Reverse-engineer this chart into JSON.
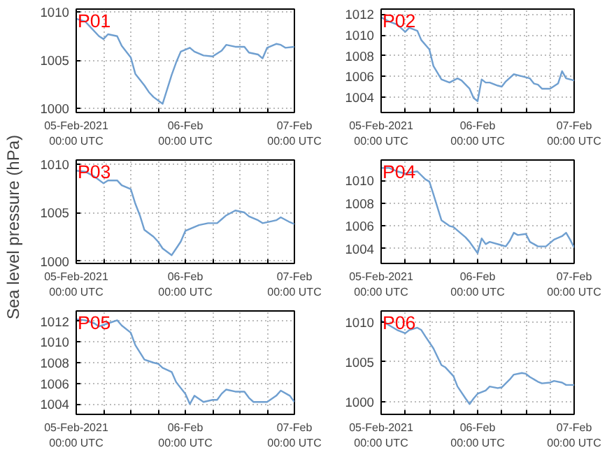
{
  "chart_data": [
    {
      "type": "line",
      "title": "P01",
      "x": [
        "2021-02-05T00:00",
        "2021-02-05T02:00",
        "2021-02-05T03:00",
        "2021-02-05T05:00",
        "2021-02-05T06:00",
        "2021-02-05T07:00",
        "2021-02-05T09:00",
        "2021-02-05T10:00",
        "2021-02-05T12:00",
        "2021-02-05T13:00",
        "2021-02-05T15:00",
        "2021-02-05T16:00",
        "2021-02-05T17:00",
        "2021-02-05T19:00",
        "2021-02-05T21:00",
        "2021-02-05T22:00",
        "2021-02-05T23:00",
        "2021-02-06T01:00",
        "2021-02-06T02:00",
        "2021-02-06T04:00",
        "2021-02-06T06:00",
        "2021-02-06T08:00",
        "2021-02-06T09:00",
        "2021-02-06T11:00",
        "2021-02-06T13:00",
        "2021-02-06T14:00",
        "2021-02-06T16:00",
        "2021-02-06T17:00",
        "2021-02-06T18:00",
        "2021-02-06T20:00",
        "2021-02-06T21:00",
        "2021-02-06T22:00",
        "2021-02-07T00:00"
      ],
      "series": [
        {
          "color": "#6f9fd0",
          "values": [
            1009.3,
            1009.0,
            1008.5,
            1007.5,
            1007.2,
            1007.7,
            1007.5,
            1006.5,
            1005.3,
            1003.6,
            1002.4,
            1001.7,
            1001.2,
            1000.5,
            1003.5,
            1004.8,
            1005.9,
            1006.3,
            1005.9,
            1005.5,
            1005.4,
            1006.0,
            1006.6,
            1006.4,
            1006.4,
            1005.8,
            1005.6,
            1005.2,
            1006.3,
            1006.7,
            1006.6,
            1006.3,
            1006.4
          ]
        }
      ],
      "xlim": [
        "2021-02-05T00:00",
        "2021-02-07T00:00"
      ],
      "xticks": [
        {
          "value": "2021-02-05T00:00",
          "label": "05-Feb-2021\n00:00 UTC"
        },
        {
          "value": "2021-02-05T06:00",
          "label": null
        },
        {
          "value": "2021-02-05T12:00",
          "label": null
        },
        {
          "value": "2021-02-05T18:00",
          "label": null
        },
        {
          "value": "2021-02-06T00:00",
          "label": "06-Feb\n00:00 UTC"
        },
        {
          "value": "2021-02-06T06:00",
          "label": null
        },
        {
          "value": "2021-02-06T12:00",
          "label": null
        },
        {
          "value": "2021-02-06T18:00",
          "label": null
        },
        {
          "value": "2021-02-07T00:00",
          "label": "07-Feb\n00:00 UTC"
        }
      ],
      "ylim": [
        999.6,
        1010.3
      ],
      "yticks": [
        1000,
        1005,
        1010
      ],
      "grid": true
    },
    {
      "type": "line",
      "title": "P02",
      "x": [
        "2021-02-05T00:00",
        "2021-02-05T02:00",
        "2021-02-05T04:00",
        "2021-02-05T06:00",
        "2021-02-05T07:00",
        "2021-02-05T09:00",
        "2021-02-05T10:00",
        "2021-02-05T12:00",
        "2021-02-05T13:00",
        "2021-02-05T15:00",
        "2021-02-05T17:00",
        "2021-02-05T19:00",
        "2021-02-05T20:00",
        "2021-02-05T22:00",
        "2021-02-05T23:00",
        "2021-02-06T00:00",
        "2021-02-06T01:00",
        "2021-02-06T02:00",
        "2021-02-06T03:00",
        "2021-02-06T05:00",
        "2021-02-06T06:00",
        "2021-02-06T07:00",
        "2021-02-06T09:00",
        "2021-02-06T11:00",
        "2021-02-06T13:00",
        "2021-02-06T14:00",
        "2021-02-06T15:00",
        "2021-02-06T16:00",
        "2021-02-06T18:00",
        "2021-02-06T20:00",
        "2021-02-06T21:00",
        "2021-02-06T22:00",
        "2021-02-07T00:00"
      ],
      "series": [
        {
          "color": "#6f9fd0",
          "values": [
            1011.7,
            1011.3,
            1011.0,
            1010.3,
            1010.7,
            1010.4,
            1009.5,
            1008.6,
            1007.0,
            1005.7,
            1005.4,
            1005.8,
            1005.6,
            1004.8,
            1003.9,
            1003.6,
            1005.7,
            1005.4,
            1005.4,
            1005.1,
            1005.0,
            1005.5,
            1006.2,
            1006.0,
            1005.8,
            1005.3,
            1005.2,
            1004.8,
            1004.8,
            1005.3,
            1006.5,
            1005.8,
            1005.6
          ]
        }
      ],
      "xlim": [
        "2021-02-05T00:00",
        "2021-02-07T00:00"
      ],
      "xticks": [
        {
          "value": "2021-02-05T00:00",
          "label": "05-Feb-2021\n00:00 UTC"
        },
        {
          "value": "2021-02-05T06:00",
          "label": null
        },
        {
          "value": "2021-02-05T12:00",
          "label": null
        },
        {
          "value": "2021-02-05T18:00",
          "label": null
        },
        {
          "value": "2021-02-06T00:00",
          "label": "06-Feb\n00:00 UTC"
        },
        {
          "value": "2021-02-06T06:00",
          "label": null
        },
        {
          "value": "2021-02-06T12:00",
          "label": null
        },
        {
          "value": "2021-02-06T18:00",
          "label": null
        },
        {
          "value": "2021-02-07T00:00",
          "label": "07-Feb\n00:00 UTC"
        }
      ],
      "ylim": [
        1002.5,
        1012.5
      ],
      "yticks": [
        1004,
        1006,
        1008,
        1010,
        1012
      ],
      "grid": true
    },
    {
      "type": "line",
      "title": "P03",
      "ylabel": "Sea level pressure (hPa)",
      "x": [
        "2021-02-05T00:00",
        "2021-02-05T02:00",
        "2021-02-05T04:00",
        "2021-02-05T06:00",
        "2021-02-05T07:00",
        "2021-02-05T09:00",
        "2021-02-05T10:00",
        "2021-02-05T12:00",
        "2021-02-05T13:00",
        "2021-02-05T14:00",
        "2021-02-05T15:00",
        "2021-02-05T17:00",
        "2021-02-05T18:00",
        "2021-02-05T19:00",
        "2021-02-05T21:00",
        "2021-02-05T22:00",
        "2021-02-05T23:00",
        "2021-02-06T00:00",
        "2021-02-06T01:00",
        "2021-02-06T03:00",
        "2021-02-06T05:00",
        "2021-02-06T07:00",
        "2021-02-06T08:00",
        "2021-02-06T09:00",
        "2021-02-06T11:00",
        "2021-02-06T13:00",
        "2021-02-06T14:00",
        "2021-02-06T16:00",
        "2021-02-06T17:00",
        "2021-02-06T19:00",
        "2021-02-06T20:00",
        "2021-02-06T21:00",
        "2021-02-06T23:00",
        "2021-02-07T00:00"
      ],
      "series": [
        {
          "color": "#6f9fd0",
          "values": [
            1009.3,
            1009.2,
            1008.7,
            1008.0,
            1008.3,
            1008.3,
            1007.8,
            1007.4,
            1005.9,
            1004.7,
            1003.2,
            1002.5,
            1002.0,
            1001.3,
            1000.6,
            1001.3,
            1002.0,
            1003.1,
            1003.3,
            1003.7,
            1003.9,
            1003.9,
            1004.3,
            1004.7,
            1005.2,
            1005.0,
            1004.6,
            1004.2,
            1003.9,
            1004.1,
            1004.2,
            1004.5,
            1004.0,
            1003.8
          ]
        }
      ],
      "xlim": [
        "2021-02-05T00:00",
        "2021-02-07T00:00"
      ],
      "xticks": [
        {
          "value": "2021-02-05T00:00",
          "label": "05-Feb-2021\n00:00 UTC"
        },
        {
          "value": "2021-02-05T06:00",
          "label": null
        },
        {
          "value": "2021-02-05T12:00",
          "label": null
        },
        {
          "value": "2021-02-05T18:00",
          "label": null
        },
        {
          "value": "2021-02-06T00:00",
          "label": "06-Feb\n00:00 UTC"
        },
        {
          "value": "2021-02-06T06:00",
          "label": null
        },
        {
          "value": "2021-02-06T12:00",
          "label": null
        },
        {
          "value": "2021-02-06T18:00",
          "label": null
        },
        {
          "value": "2021-02-07T00:00",
          "label": "07-Feb\n00:00 UTC"
        }
      ],
      "ylim": [
        999.75,
        1010.4
      ],
      "yticks": [
        1000,
        1005,
        1010
      ],
      "grid": true
    },
    {
      "type": "line",
      "title": "P04",
      "x": [
        "2021-02-05T00:00",
        "2021-02-05T02:00",
        "2021-02-05T04:00",
        "2021-02-05T06:00",
        "2021-02-05T07:00",
        "2021-02-05T09:00",
        "2021-02-05T11:00",
        "2021-02-05T12:00",
        "2021-02-05T13:00",
        "2021-02-05T15:00",
        "2021-02-05T17:00",
        "2021-02-05T18:00",
        "2021-02-05T19:00",
        "2021-02-05T21:00",
        "2021-02-05T22:00",
        "2021-02-05T23:00",
        "2021-02-06T00:00",
        "2021-02-06T01:00",
        "2021-02-06T02:00",
        "2021-02-06T03:00",
        "2021-02-06T06:00",
        "2021-02-06T07:00",
        "2021-02-06T08:00",
        "2021-02-06T09:00",
        "2021-02-06T10:00",
        "2021-02-06T12:00",
        "2021-02-06T13:00",
        "2021-02-06T15:00",
        "2021-02-06T17:00",
        "2021-02-06T19:00",
        "2021-02-06T21:00",
        "2021-02-06T22:00",
        "2021-02-06T23:00",
        "2021-02-07T00:00"
      ],
      "series": [
        {
          "color": "#6f9fd0",
          "values": [
            1011.1,
            1011.1,
            1010.8,
            1010.6,
            1010.7,
            1010.8,
            1010.1,
            1009.9,
            1008.8,
            1006.5,
            1006.0,
            1005.9,
            1005.6,
            1005.0,
            1004.6,
            1004.1,
            1003.6,
            1004.9,
            1004.4,
            1004.6,
            1004.3,
            1004.2,
            1004.7,
            1005.4,
            1005.2,
            1005.3,
            1004.6,
            1004.2,
            1004.2,
            1004.8,
            1005.1,
            1005.4,
            1004.8,
            1004.1
          ]
        }
      ],
      "xlim": [
        "2021-02-05T00:00",
        "2021-02-07T00:00"
      ],
      "xticks": [
        {
          "value": "2021-02-05T00:00",
          "label": "05-Feb-2021\n00:00 UTC"
        },
        {
          "value": "2021-02-05T06:00",
          "label": null
        },
        {
          "value": "2021-02-05T12:00",
          "label": null
        },
        {
          "value": "2021-02-05T18:00",
          "label": null
        },
        {
          "value": "2021-02-06T00:00",
          "label": "06-Feb\n00:00 UTC"
        },
        {
          "value": "2021-02-06T06:00",
          "label": null
        },
        {
          "value": "2021-02-06T12:00",
          "label": null
        },
        {
          "value": "2021-02-06T18:00",
          "label": null
        },
        {
          "value": "2021-02-07T00:00",
          "label": "07-Feb\n00:00 UTC"
        }
      ],
      "ylim": [
        1002.7,
        1011.8
      ],
      "yticks": [
        1004,
        1006,
        1008,
        1010
      ],
      "grid": true
    },
    {
      "type": "line",
      "title": "P05",
      "x": [
        "2021-02-05T00:00",
        "2021-02-05T02:00",
        "2021-02-05T04:00",
        "2021-02-05T05:00",
        "2021-02-05T07:00",
        "2021-02-05T09:00",
        "2021-02-05T10:00",
        "2021-02-05T12:00",
        "2021-02-05T13:00",
        "2021-02-05T15:00",
        "2021-02-05T17:00",
        "2021-02-05T18:00",
        "2021-02-05T19:00",
        "2021-02-05T21:00",
        "2021-02-05T22:00",
        "2021-02-06T00:00",
        "2021-02-06T01:00",
        "2021-02-06T02:00",
        "2021-02-06T04:00",
        "2021-02-06T06:00",
        "2021-02-06T07:00",
        "2021-02-06T08:00",
        "2021-02-06T09:00",
        "2021-02-06T11:00",
        "2021-02-06T13:00",
        "2021-02-06T14:00",
        "2021-02-06T15:00",
        "2021-02-06T18:00",
        "2021-02-06T20:00",
        "2021-02-06T21:00",
        "2021-02-06T23:00",
        "2021-02-07T00:00"
      ],
      "series": [
        {
          "color": "#6f9fd0",
          "values": [
            1012.2,
            1012.1,
            1011.8,
            1011.5,
            1011.8,
            1012.1,
            1011.6,
            1010.9,
            1009.7,
            1008.3,
            1008.0,
            1007.9,
            1007.5,
            1007.1,
            1006.1,
            1005.0,
            1004.0,
            1004.8,
            1004.2,
            1004.4,
            1004.4,
            1005.0,
            1005.4,
            1005.2,
            1005.2,
            1004.6,
            1004.2,
            1004.2,
            1004.8,
            1005.3,
            1004.8,
            1004.2
          ]
        }
      ],
      "xlim": [
        "2021-02-05T00:00",
        "2021-02-07T00:00"
      ],
      "xticks": [
        {
          "value": "2021-02-05T00:00",
          "label": "05-Feb-2021\n00:00 UTC"
        },
        {
          "value": "2021-02-05T06:00",
          "label": null
        },
        {
          "value": "2021-02-05T12:00",
          "label": null
        },
        {
          "value": "2021-02-05T18:00",
          "label": null
        },
        {
          "value": "2021-02-06T00:00",
          "label": "06-Feb\n00:00 UTC"
        },
        {
          "value": "2021-02-06T06:00",
          "label": null
        },
        {
          "value": "2021-02-06T12:00",
          "label": null
        },
        {
          "value": "2021-02-06T18:00",
          "label": null
        },
        {
          "value": "2021-02-07T00:00",
          "label": "07-Feb\n00:00 UTC"
        }
      ],
      "ylim": [
        1003.0,
        1013.0
      ],
      "yticks": [
        1004,
        1006,
        1008,
        1010,
        1012
      ],
      "grid": true
    },
    {
      "type": "line",
      "title": "P06",
      "x": [
        "2021-02-05T00:00",
        "2021-02-05T02:00",
        "2021-02-05T04:00",
        "2021-02-05T06:00",
        "2021-02-05T07:00",
        "2021-02-05T09:00",
        "2021-02-05T10:00",
        "2021-02-05T11:00",
        "2021-02-05T13:00",
        "2021-02-05T15:00",
        "2021-02-05T16:00",
        "2021-02-05T18:00",
        "2021-02-05T19:00",
        "2021-02-05T21:00",
        "2021-02-05T22:00",
        "2021-02-05T23:00",
        "2021-02-06T00:00",
        "2021-02-06T02:00",
        "2021-02-06T03:00",
        "2021-02-06T05:00",
        "2021-02-06T06:00",
        "2021-02-06T08:00",
        "2021-02-06T09:00",
        "2021-02-06T11:00",
        "2021-02-06T12:00",
        "2021-02-06T13:00",
        "2021-02-06T15:00",
        "2021-02-06T16:00",
        "2021-02-06T18:00",
        "2021-02-06T19:00",
        "2021-02-06T21:00",
        "2021-02-06T22:00",
        "2021-02-07T00:00"
      ],
      "series": [
        {
          "color": "#6f9fd0",
          "values": [
            1010.2,
            1009.6,
            1009.0,
            1008.6,
            1009.0,
            1009.3,
            1009.0,
            1008.2,
            1006.7,
            1004.6,
            1004.3,
            1003.2,
            1001.9,
            1000.4,
            999.7,
            1000.4,
            1001.0,
            1001.4,
            1001.9,
            1001.7,
            1001.8,
            1002.8,
            1003.4,
            1003.6,
            1003.5,
            1003.1,
            1002.5,
            1002.3,
            1002.4,
            1002.6,
            1002.4,
            1002.1,
            1002.1
          ]
        }
      ],
      "xlim": [
        "2021-02-05T00:00",
        "2021-02-07T00:00"
      ],
      "xticks": [
        {
          "value": "2021-02-05T00:00",
          "label": "05-Feb-2021\n00:00 UTC"
        },
        {
          "value": "2021-02-05T06:00",
          "label": null
        },
        {
          "value": "2021-02-05T12:00",
          "label": null
        },
        {
          "value": "2021-02-05T18:00",
          "label": null
        },
        {
          "value": "2021-02-06T00:00",
          "label": "06-Feb\n00:00 UTC"
        },
        {
          "value": "2021-02-06T06:00",
          "label": null
        },
        {
          "value": "2021-02-06T12:00",
          "label": null
        },
        {
          "value": "2021-02-06T18:00",
          "label": null
        },
        {
          "value": "2021-02-07T00:00",
          "label": "07-Feb\n00:00 UTC"
        }
      ],
      "ylim": [
        998.4,
        1011.4
      ],
      "yticks": [
        1000,
        1005,
        1010
      ],
      "grid": true
    }
  ]
}
